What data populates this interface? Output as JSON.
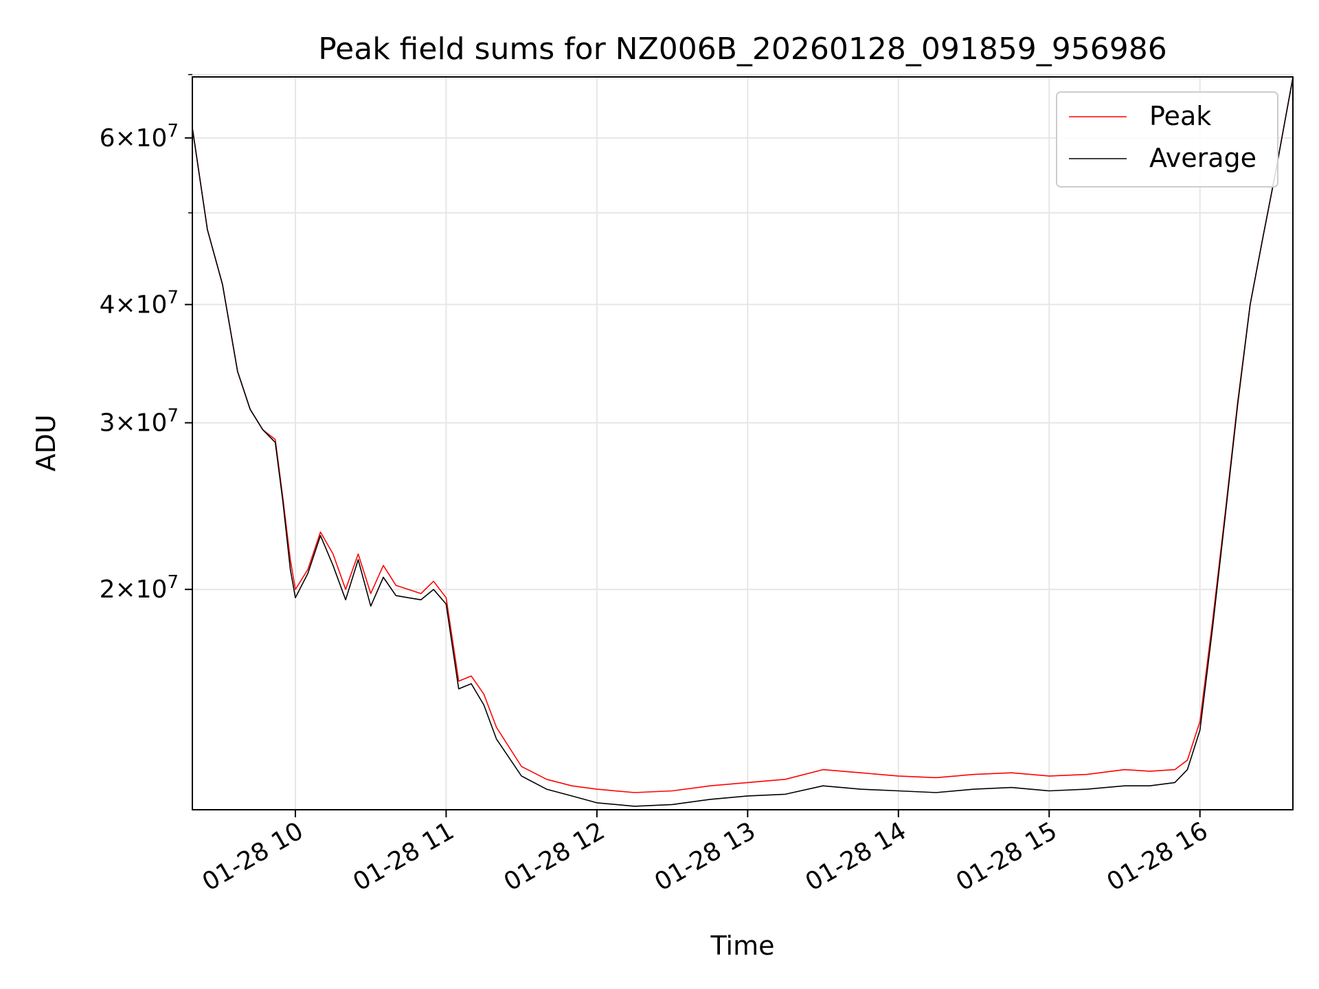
{
  "chart_data": {
    "type": "line",
    "title": "Peak field sums for NZ006B_20260128_091859_956986",
    "xlabel": "Time",
    "ylabel": "ADU",
    "yscale": "log",
    "grid": true,
    "legend_position": "top-right",
    "xlim": [
      "2026-01-28 09:19",
      "2026-01-28 16:37"
    ],
    "ylim": [
      11700000,
      69600000
    ],
    "x_ticks": [
      {
        "value": "2026-01-28 10:00",
        "label": "01-28 10"
      },
      {
        "value": "2026-01-28 11:00",
        "label": "01-28 11"
      },
      {
        "value": "2026-01-28 12:00",
        "label": "01-28 12"
      },
      {
        "value": "2026-01-28 13:00",
        "label": "01-28 13"
      },
      {
        "value": "2026-01-28 14:00",
        "label": "01-28 14"
      },
      {
        "value": "2026-01-28 15:00",
        "label": "01-28 15"
      },
      {
        "value": "2026-01-28 16:00",
        "label": "01-28 16"
      }
    ],
    "y_ticks": [
      {
        "value": 20000000,
        "mant": "2",
        "exp": "7"
      },
      {
        "value": 30000000,
        "mant": "3",
        "exp": "7"
      },
      {
        "value": 40000000,
        "mant": "4",
        "exp": "7"
      },
      {
        "value": 60000000,
        "mant": "6",
        "exp": "7"
      }
    ],
    "y_minor_ticks": [
      50000000,
      70000000
    ],
    "series": [
      {
        "name": "Peak",
        "color": "#ff0000",
        "x": [
          "2026-01-28 09:19",
          "2026-01-28 09:25",
          "2026-01-28 09:31",
          "2026-01-28 09:37",
          "2026-01-28 09:42",
          "2026-01-28 09:47",
          "2026-01-28 09:52",
          "2026-01-28 09:55",
          "2026-01-28 09:58",
          "2026-01-28 10:00",
          "2026-01-28 10:05",
          "2026-01-28 10:10",
          "2026-01-28 10:15",
          "2026-01-28 10:20",
          "2026-01-28 10:25",
          "2026-01-28 10:30",
          "2026-01-28 10:35",
          "2026-01-28 10:40",
          "2026-01-28 10:45",
          "2026-01-28 10:50",
          "2026-01-28 10:55",
          "2026-01-28 11:00",
          "2026-01-28 11:05",
          "2026-01-28 11:10",
          "2026-01-28 11:15",
          "2026-01-28 11:20",
          "2026-01-28 11:30",
          "2026-01-28 11:40",
          "2026-01-28 11:50",
          "2026-01-28 12:00",
          "2026-01-28 12:15",
          "2026-01-28 12:30",
          "2026-01-28 12:45",
          "2026-01-28 13:00",
          "2026-01-28 13:15",
          "2026-01-28 13:30",
          "2026-01-28 13:45",
          "2026-01-28 14:00",
          "2026-01-28 14:15",
          "2026-01-28 14:30",
          "2026-01-28 14:45",
          "2026-01-28 15:00",
          "2026-01-28 15:15",
          "2026-01-28 15:30",
          "2026-01-28 15:40",
          "2026-01-28 15:50",
          "2026-01-28 15:55",
          "2026-01-28 16:00",
          "2026-01-28 16:05",
          "2026-01-28 16:10",
          "2026-01-28 16:15",
          "2026-01-28 16:20",
          "2026-01-28 16:25",
          "2026-01-28 16:30",
          "2026-01-28 16:37"
        ],
        "y": [
          61500000,
          48000000,
          42000000,
          34000000,
          31000000,
          29500000,
          28800000,
          25000000,
          21500000,
          20000000,
          21000000,
          23000000,
          21800000,
          20000000,
          21800000,
          19800000,
          21200000,
          20200000,
          20000000,
          19800000,
          20400000,
          19600000,
          16000000,
          16200000,
          15500000,
          14300000,
          13000000,
          12600000,
          12400000,
          12300000,
          12200000,
          12250000,
          12400000,
          12500000,
          12600000,
          12900000,
          12800000,
          12700000,
          12650000,
          12750000,
          12800000,
          12700000,
          12750000,
          12900000,
          12850000,
          12900000,
          13200000,
          14500000,
          18500000,
          24000000,
          31500000,
          40000000,
          47000000,
          55000000,
          69500000
        ]
      },
      {
        "name": "Average",
        "color": "#000000",
        "x": [
          "2026-01-28 09:19",
          "2026-01-28 09:25",
          "2026-01-28 09:31",
          "2026-01-28 09:37",
          "2026-01-28 09:42",
          "2026-01-28 09:47",
          "2026-01-28 09:52",
          "2026-01-28 09:55",
          "2026-01-28 09:58",
          "2026-01-28 10:00",
          "2026-01-28 10:05",
          "2026-01-28 10:10",
          "2026-01-28 10:15",
          "2026-01-28 10:20",
          "2026-01-28 10:25",
          "2026-01-28 10:30",
          "2026-01-28 10:35",
          "2026-01-28 10:40",
          "2026-01-28 10:45",
          "2026-01-28 10:50",
          "2026-01-28 10:55",
          "2026-01-28 11:00",
          "2026-01-28 11:05",
          "2026-01-28 11:10",
          "2026-01-28 11:15",
          "2026-01-28 11:20",
          "2026-01-28 11:30",
          "2026-01-28 11:40",
          "2026-01-28 11:50",
          "2026-01-28 12:00",
          "2026-01-28 12:15",
          "2026-01-28 12:30",
          "2026-01-28 12:45",
          "2026-01-28 13:00",
          "2026-01-28 13:15",
          "2026-01-28 13:30",
          "2026-01-28 13:45",
          "2026-01-28 14:00",
          "2026-01-28 14:15",
          "2026-01-28 14:30",
          "2026-01-28 14:45",
          "2026-01-28 15:00",
          "2026-01-28 15:15",
          "2026-01-28 15:30",
          "2026-01-28 15:40",
          "2026-01-28 15:50",
          "2026-01-28 15:55",
          "2026-01-28 16:00",
          "2026-01-28 16:05",
          "2026-01-28 16:10",
          "2026-01-28 16:15",
          "2026-01-28 16:20",
          "2026-01-28 16:25",
          "2026-01-28 16:30",
          "2026-01-28 16:37"
        ],
        "y": [
          61500000,
          48000000,
          42000000,
          34000000,
          31000000,
          29500000,
          28600000,
          24800000,
          21000000,
          19600000,
          20800000,
          22800000,
          21200000,
          19500000,
          21500000,
          19200000,
          20600000,
          19700000,
          19600000,
          19500000,
          20000000,
          19300000,
          15700000,
          15900000,
          15100000,
          13900000,
          12700000,
          12300000,
          12100000,
          11900000,
          11800000,
          11850000,
          12000000,
          12100000,
          12150000,
          12400000,
          12300000,
          12250000,
          12200000,
          12300000,
          12350000,
          12250000,
          12300000,
          12400000,
          12400000,
          12500000,
          12900000,
          14200000,
          18200000,
          23800000,
          31300000,
          40000000,
          47000000,
          55000000,
          69500000
        ]
      }
    ]
  }
}
